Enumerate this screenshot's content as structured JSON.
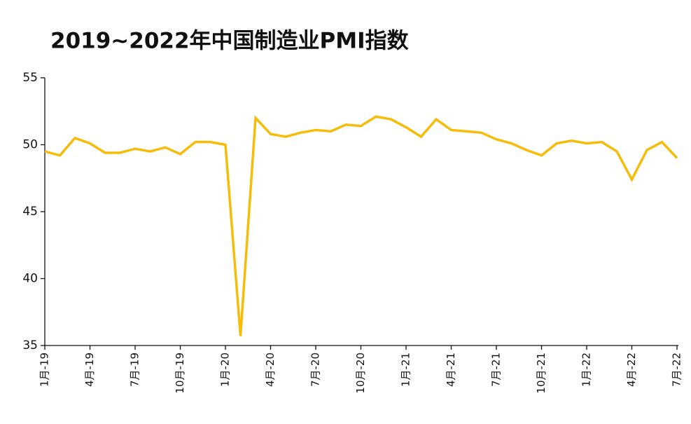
{
  "chart_data": {
    "type": "line",
    "title": "2019~2022年中国制造业PMI指数",
    "categories": [
      "1月-19",
      null,
      null,
      "4月-19",
      null,
      null,
      "7月-19",
      null,
      null,
      "10月-19",
      null,
      null,
      "1月-20",
      null,
      null,
      "4月-20",
      null,
      null,
      "7月-20",
      null,
      null,
      "10月-20",
      null,
      null,
      "1月-21",
      null,
      null,
      "4月-21",
      null,
      null,
      "7月-21",
      null,
      null,
      "10月-21",
      null,
      null,
      "1月-22",
      null,
      null,
      "4月-22",
      null,
      null,
      "7月-22"
    ],
    "values": [
      49.5,
      49.2,
      50.5,
      50.1,
      49.4,
      49.4,
      49.7,
      49.5,
      49.8,
      49.3,
      50.2,
      50.2,
      50.0,
      35.7,
      52.0,
      50.8,
      50.6,
      50.9,
      51.1,
      51.0,
      51.5,
      51.4,
      52.1,
      51.9,
      51.3,
      50.6,
      51.9,
      51.1,
      51.0,
      50.9,
      50.4,
      50.1,
      49.6,
      49.2,
      50.1,
      50.3,
      50.1,
      50.2,
      49.5,
      47.4,
      49.6,
      50.2,
      49.0
    ],
    "color": "#f5bd0a",
    "ylim": [
      35,
      55
    ],
    "yticks": [
      35,
      40,
      45,
      50,
      55
    ]
  }
}
